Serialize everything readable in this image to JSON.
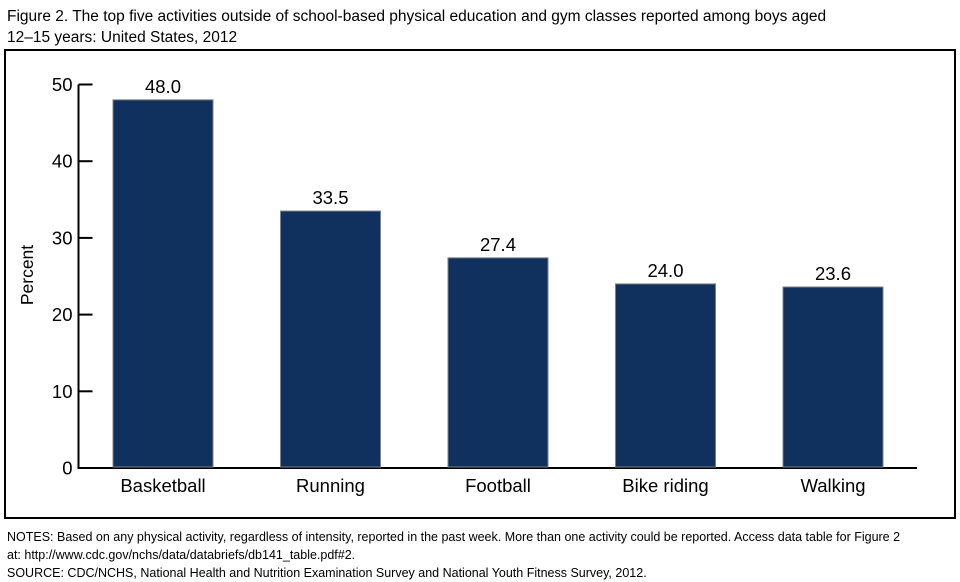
{
  "figure": {
    "title_line1": "Figure 2. The top five activities outside of school-based physical education and gym classes reported among boys aged",
    "title_line2": "12–15 years: United States, 2012"
  },
  "chart_data": {
    "type": "bar",
    "title": "Figure 2. The top five activities outside of school-based physical education and gym classes reported among boys aged 12–15 years: United States, 2012",
    "categories": [
      "Basketball",
      "Running",
      "Football",
      "Bike riding",
      "Walking"
    ],
    "values": [
      48.0,
      33.5,
      27.4,
      24.0,
      23.6
    ],
    "value_labels": [
      "48.0",
      "33.5",
      "27.4",
      "24.0",
      "23.6"
    ],
    "xlabel": "",
    "ylabel": "Percent",
    "ylim": [
      0,
      50
    ],
    "yticks": [
      0,
      10,
      20,
      30,
      40,
      50
    ],
    "grid": false,
    "legend": "none",
    "bar_color": "#10305e",
    "bar_border_color": "#808080",
    "axis_color": "#000000"
  },
  "footnotes": {
    "notes_line1": "NOTES: Based on any physical activity, regardless of intensity, reported in the past week. More than one activity could be reported. Access data table for Figure 2",
    "notes_line2": "at: http://www.cdc.gov/nchs/data/databriefs/db141_table.pdf#2.",
    "source": "SOURCE: CDC/NCHS, National Health and Nutrition Examination Survey and National Youth Fitness Survey, 2012."
  }
}
